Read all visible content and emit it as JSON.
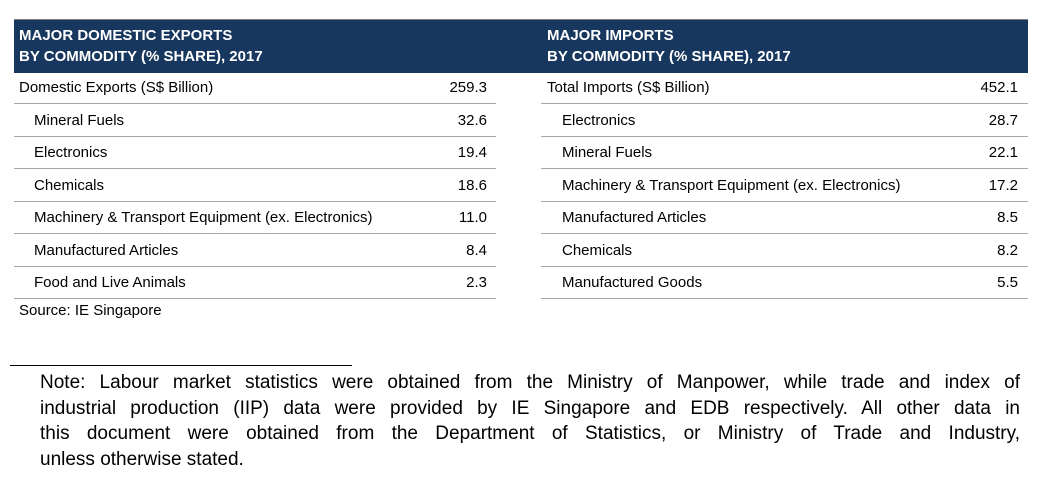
{
  "left": {
    "title_lines": [
      "MAJOR DOMESTIC EXPORTS",
      "BY COMMODITY (% SHARE), 2017"
    ],
    "total": {
      "label": "Domestic Exports (S$ Billion)",
      "value": "259.3"
    },
    "rows": [
      {
        "label": "Mineral Fuels",
        "value": "32.6"
      },
      {
        "label": "Electronics",
        "value": "19.4"
      },
      {
        "label": "Chemicals",
        "value": "18.6"
      },
      {
        "label": "Machinery & Transport Equipment (ex. Electronics)",
        "value": "11.0"
      },
      {
        "label": "Manufactured Articles",
        "value": "8.4"
      },
      {
        "label": "Food and Live Animals",
        "value": "2.3"
      }
    ]
  },
  "right": {
    "title_lines": [
      "MAJOR IMPORTS",
      "BY COMMODITY (% SHARE), 2017"
    ],
    "total": {
      "label": "Total Imports (S$ Billion)",
      "value": "452.1"
    },
    "rows": [
      {
        "label": "Electronics",
        "value": "28.7"
      },
      {
        "label": "Mineral Fuels",
        "value": "22.1"
      },
      {
        "label": "Machinery & Transport Equipment (ex. Electronics)",
        "value": "17.2"
      },
      {
        "label": "Manufactured Articles",
        "value": "8.5"
      },
      {
        "label": "Chemicals",
        "value": "8.2"
      },
      {
        "label": "Manufactured Goods",
        "value": "5.5"
      }
    ]
  },
  "source": "Source: IE Singapore",
  "note_lines": [
    "Note: Labour market statistics were obtained from the Ministry of Manpower, while trade and index of",
    "industrial production (IIP) data were provided by IE Singapore and EDB respectively. All other data in",
    "this document were obtained from the Department of Statistics, or Ministry of Trade and Industry,",
    "unless otherwise stated."
  ]
}
